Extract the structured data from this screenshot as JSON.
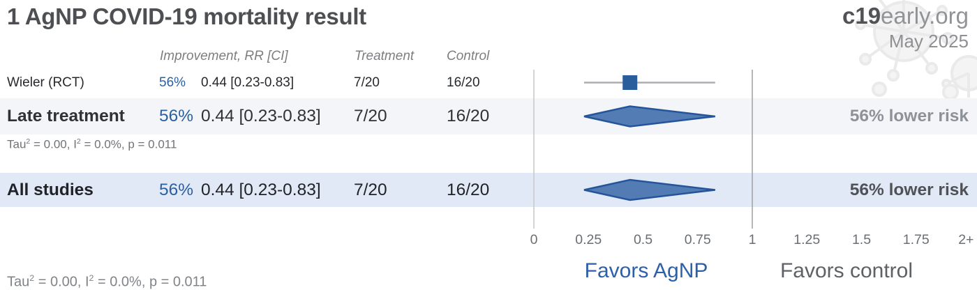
{
  "header": {
    "title": "1 AgNP COVID-19 mortality result",
    "brand_bold": "c19",
    "brand_rest": "early.org",
    "date": "May 2025"
  },
  "columns": {
    "improvement": "Improvement, RR [CI]",
    "treatment": "Treatment",
    "control": "Control"
  },
  "stats": {
    "late": {
      "tau": "Tau",
      "tau_sup": "2",
      "mid": " = 0.00, I",
      "i_sup": "2",
      "tail": " = 0.0%, p = 0.011"
    },
    "overall": {
      "tau": "Tau",
      "tau_sup": "2",
      "mid": " = 0.00, I",
      "i_sup": "2",
      "tail": " = 0.0%, p = 0.011"
    }
  },
  "axis": {
    "favors_left": "Favors AgNP",
    "favors_right": "Favors control",
    "ticks": [
      {
        "label": "0",
        "value": 0
      },
      {
        "label": "0.25",
        "value": 0.25
      },
      {
        "label": "0.5",
        "value": 0.5
      },
      {
        "label": "0.75",
        "value": 0.75
      },
      {
        "label": "1",
        "value": 1
      },
      {
        "label": "1.25",
        "value": 1.25
      },
      {
        "label": "1.5",
        "value": 1.5
      },
      {
        "label": "1.75",
        "value": 1.75
      },
      {
        "label": "2+",
        "value": 2
      }
    ]
  },
  "colors": {
    "accent_blue": "#2b5f9e",
    "square_marker": "#2a5d9c",
    "diamond_fill": "#527cb3",
    "diamond_border": "#24559a",
    "ci_line": "#a9adb2",
    "ref_line_0": "#c9c9c9",
    "ref_line_1": "#a5a5a5",
    "favors_blue": "#2c60a9",
    "row_late_bg": "#f4f5f9",
    "row_all_bg": "#e2e9f6"
  },
  "chart_data": {
    "type": "forest",
    "title": "1 AgNP COVID-19 mortality result",
    "x_axis": {
      "range": [
        0,
        2
      ],
      "ticks": [
        0,
        0.25,
        0.5,
        0.75,
        1,
        1.25,
        1.5,
        1.75,
        "2+"
      ],
      "reference_lines": [
        0,
        1
      ],
      "label_left": "Favors AgNP",
      "label_right": "Favors control"
    },
    "studies": [
      {
        "name": "Wieler (RCT)",
        "improvement": "56%",
        "rr": 0.44,
        "ci_lower": 0.23,
        "ci_upper": 0.83,
        "rr_text": "0.44 [0.23-0.83]",
        "treatment": "7/20",
        "control": "16/20",
        "marker": "square"
      }
    ],
    "summaries": [
      {
        "key": "late",
        "name": "Late treatment",
        "improvement": "56%",
        "rr": 0.44,
        "ci_lower": 0.23,
        "ci_upper": 0.83,
        "rr_text": "0.44 [0.23-0.83]",
        "treatment": "7/20",
        "control": "16/20",
        "note": "56% lower risk",
        "tau2": "0.00",
        "i2": "0.0%",
        "p": "0.011",
        "marker": "diamond"
      },
      {
        "key": "all",
        "name": "All studies",
        "improvement": "56%",
        "rr": 0.44,
        "ci_lower": 0.23,
        "ci_upper": 0.83,
        "rr_text": "0.44 [0.23-0.83]",
        "treatment": "7/20",
        "control": "16/20",
        "note": "56% lower risk",
        "tau2": "0.00",
        "i2": "0.0%",
        "p": "0.011",
        "marker": "diamond"
      }
    ]
  }
}
